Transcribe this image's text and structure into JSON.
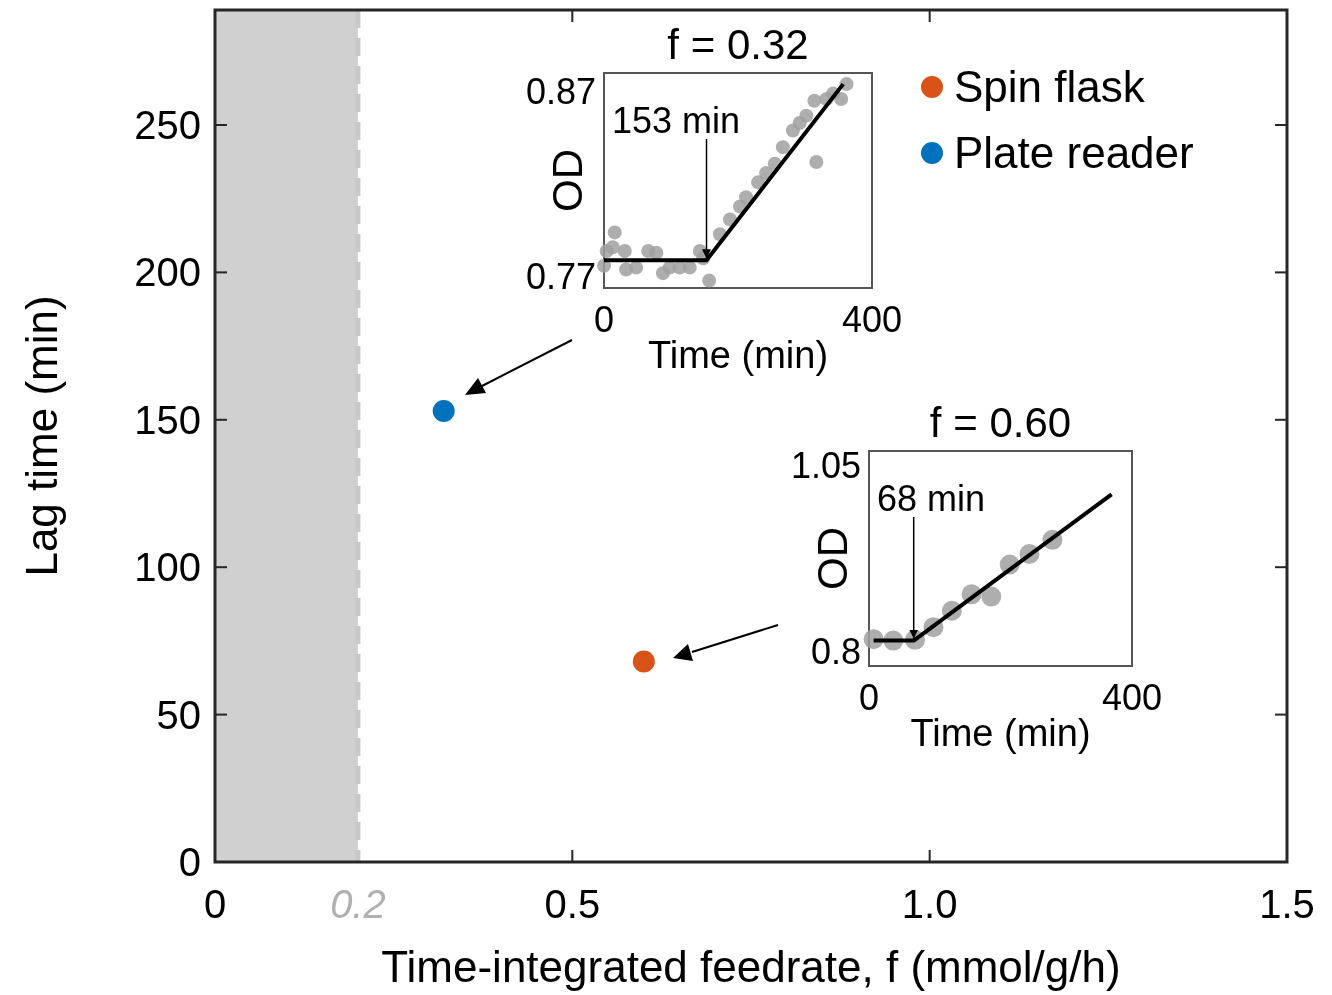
{
  "chart_data": [
    {
      "type": "scatter",
      "xlabel": "Time-integrated feedrate, f (mmol/g/h)",
      "ylabel": "Lag time (min)",
      "xlim": [
        0,
        1.5
      ],
      "ylim": [
        0,
        289
      ],
      "xticks": [
        0,
        0.5,
        {
          "value": 1,
          "label": "1.0"
        },
        1.5
      ],
      "yticks": [
        0,
        50,
        100,
        150,
        200,
        250
      ],
      "grid": false,
      "legend": "top right",
      "marker": "circle",
      "series": [
        {
          "name": "Spin flask",
          "color": "#d95319",
          "x": [
            0.6
          ],
          "values": [
            68
          ]
        },
        {
          "name": "Plate reader",
          "color": "#0072bd",
          "x": [
            0.32
          ],
          "values": [
            153
          ]
        }
      ],
      "bands": [
        {
          "axis": "x",
          "from": 0,
          "to": 0.2,
          "color": "#d0d0d0"
        }
      ],
      "ref_lines": [
        {
          "axis": "x",
          "value": 0.2,
          "label": "0.2",
          "color": "#c8c8c8",
          "line_style": "dashed"
        }
      ]
    },
    {
      "type": "scatter",
      "title": "f = 0.32",
      "xlabel": "Time (min)",
      "ylabel": "OD",
      "xlim": [
        0,
        400
      ],
      "ylim": [
        0.764,
        0.88
      ],
      "xticks": [
        0,
        400
      ],
      "yticks": [
        0.77,
        0.87
      ],
      "series": [
        {
          "marker": "circle",
          "color": "#a0a0a0",
          "x": [
            0,
            4,
            16,
            13,
            31,
            33,
            48,
            66,
            78,
            88,
            98,
            113,
            128,
            143,
            148,
            157,
            173,
            188,
            203,
            212,
            230,
            242,
            255,
            267,
            282,
            292,
            302,
            314,
            317,
            332,
            342,
            354,
            362
          ],
          "values": [
            0.776,
            0.784,
            0.794,
            0.786,
            0.784,
            0.774,
            0.775,
            0.784,
            0.783,
            0.772,
            0.775,
            0.775,
            0.775,
            0.784,
            0.78,
            0.768,
            0.793,
            0.801,
            0.808,
            0.813,
            0.821,
            0.826,
            0.831,
            0.84,
            0.849,
            0.853,
            0.857,
            0.865,
            0.832,
            0.866,
            0.869,
            0.866,
            0.874
          ]
        },
        {
          "type": "line",
          "marker": "none",
          "color": "#000000",
          "x": [
            0,
            153,
            357
          ],
          "values": [
            0.779,
            0.779,
            0.874
          ]
        }
      ],
      "annotations": [
        {
          "text": "153 min",
          "x": 153,
          "y": 0.779
        }
      ]
    },
    {
      "type": "scatter",
      "title": "f = 0.60",
      "xlabel": "Time (min)",
      "ylabel": "OD",
      "xlim": [
        0,
        400
      ],
      "ylim": [
        0.781,
        1.069
      ],
      "xticks": [
        0,
        400
      ],
      "yticks": [
        0.8,
        1.05
      ],
      "series": [
        {
          "marker": "circle",
          "color": "#a0a0a0",
          "x": [
            7,
            37,
            70,
            98,
            126,
            156,
            186,
            214,
            244,
            279
          ],
          "values": [
            0.817,
            0.815,
            0.816,
            0.833,
            0.855,
            0.877,
            0.874,
            0.917,
            0.931,
            0.95
          ]
        },
        {
          "type": "line",
          "marker": "none",
          "color": "#000000",
          "x": [
            7,
            68,
            369
          ],
          "values": [
            0.815,
            0.815,
            1.011
          ]
        }
      ],
      "annotations": [
        {
          "text": "68 min",
          "x": 68,
          "y": 0.815
        }
      ]
    }
  ]
}
